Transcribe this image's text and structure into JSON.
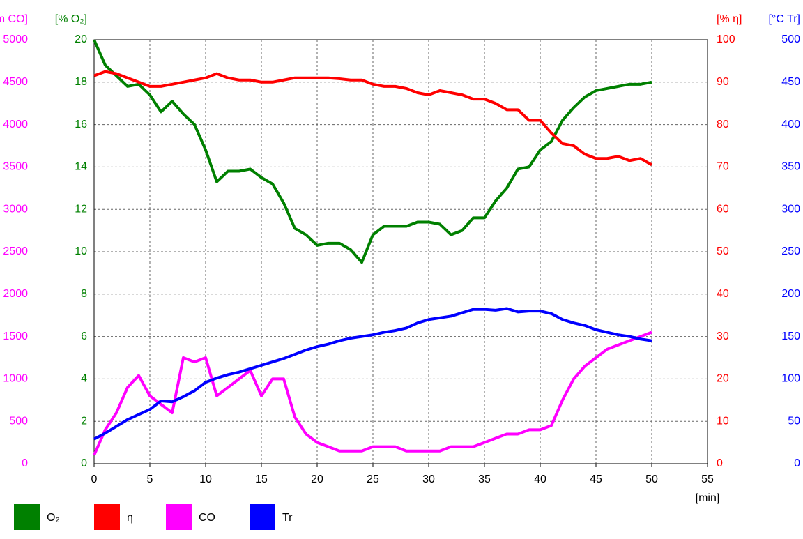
{
  "chart_data": {
    "type": "line",
    "x_label": "[min]",
    "xlim": [
      0,
      55
    ],
    "xticks": [
      0,
      5,
      10,
      15,
      20,
      25,
      30,
      35,
      40,
      45,
      50,
      55
    ],
    "grid": true,
    "y_axes": [
      {
        "label": "[ppm CO]",
        "color": "#ff00ff",
        "side": "left",
        "lim": [
          0,
          5000
        ],
        "ticks": [
          0,
          500,
          1000,
          1500,
          2000,
          2500,
          3000,
          3500,
          4000,
          4500,
          5000
        ]
      },
      {
        "label": "[% O₂]",
        "color": "#008000",
        "side": "left",
        "lim": [
          0,
          20
        ],
        "ticks": [
          0,
          2,
          4,
          6,
          8,
          10,
          12,
          14,
          16,
          18,
          20
        ]
      },
      {
        "label": "[% η]",
        "color": "#ff0000",
        "side": "right",
        "lim": [
          0,
          100
        ],
        "ticks": [
          0,
          10,
          20,
          30,
          40,
          50,
          60,
          70,
          80,
          90,
          100
        ]
      },
      {
        "label": "[°C Tr]",
        "color": "#0000ff",
        "side": "right",
        "lim": [
          0,
          500
        ],
        "ticks": [
          0,
          50,
          100,
          150,
          200,
          250,
          300,
          350,
          400,
          450,
          500
        ]
      }
    ],
    "x": [
      0,
      1,
      2,
      3,
      4,
      5,
      6,
      7,
      8,
      9,
      10,
      11,
      12,
      13,
      14,
      15,
      16,
      17,
      18,
      19,
      20,
      21,
      22,
      23,
      24,
      25,
      26,
      27,
      28,
      29,
      30,
      31,
      32,
      33,
      34,
      35,
      36,
      37,
      38,
      39,
      40,
      41,
      42,
      43,
      44,
      45,
      46,
      47,
      48,
      49,
      50
    ],
    "series": [
      {
        "name": "O₂",
        "color": "#008000",
        "axis": 1,
        "values": [
          20,
          18.8,
          18.3,
          17.8,
          17.9,
          17.4,
          16.6,
          17.1,
          16.5,
          16.0,
          14.8,
          13.3,
          13.8,
          13.8,
          13.9,
          13.5,
          13.2,
          12.3,
          11.1,
          10.8,
          10.3,
          10.4,
          10.4,
          10.1,
          9.5,
          10.8,
          11.2,
          11.2,
          11.2,
          11.4,
          11.4,
          11.3,
          10.8,
          11.0,
          11.6,
          11.6,
          12.4,
          13.0,
          13.9,
          14.0,
          14.8,
          15.2,
          16.2,
          16.8,
          17.3,
          17.6,
          17.7,
          17.8,
          17.9,
          17.9,
          18.0
        ]
      },
      {
        "name": "η",
        "color": "#ff0000",
        "axis": 2,
        "values": [
          91.5,
          92.5,
          92,
          91,
          90,
          89,
          89,
          89.5,
          90,
          90.5,
          91,
          92,
          91,
          90.5,
          90.5,
          90,
          90,
          90.5,
          91,
          91,
          91,
          91,
          90.8,
          90.5,
          90.5,
          89.5,
          89,
          89,
          88.5,
          87.5,
          87,
          88,
          87.5,
          87,
          86,
          86,
          85,
          83.5,
          83.5,
          81,
          81,
          78,
          75.5,
          75,
          73,
          72,
          72,
          72.5,
          71.5,
          72,
          70.5
        ]
      },
      {
        "name": "CO",
        "color": "#ff00ff",
        "axis": 0,
        "values": [
          100,
          400,
          600,
          900,
          1040,
          800,
          700,
          600,
          1250,
          1200,
          1250,
          800,
          900,
          1000,
          1100,
          800,
          1000,
          1000,
          550,
          350,
          250,
          200,
          150,
          150,
          150,
          200,
          200,
          200,
          150,
          150,
          150,
          150,
          200,
          200,
          200,
          250,
          300,
          350,
          350,
          400,
          400,
          450,
          750,
          1000,
          1150,
          1250,
          1350,
          1400,
          1450,
          1500,
          1550
        ]
      },
      {
        "name": "Tr",
        "color": "#0000ff",
        "axis": 3,
        "values": [
          29,
          36,
          44,
          52,
          58,
          64,
          74,
          73,
          79,
          86,
          96,
          101,
          105,
          108,
          112,
          116,
          120,
          124,
          129,
          134,
          138,
          141,
          145,
          148,
          150,
          152,
          155,
          157,
          160,
          166,
          170,
          172,
          174,
          178,
          182,
          182,
          181,
          183,
          179,
          180,
          180,
          177,
          170,
          166,
          163,
          158,
          155,
          152,
          150,
          147,
          145
        ]
      }
    ]
  }
}
